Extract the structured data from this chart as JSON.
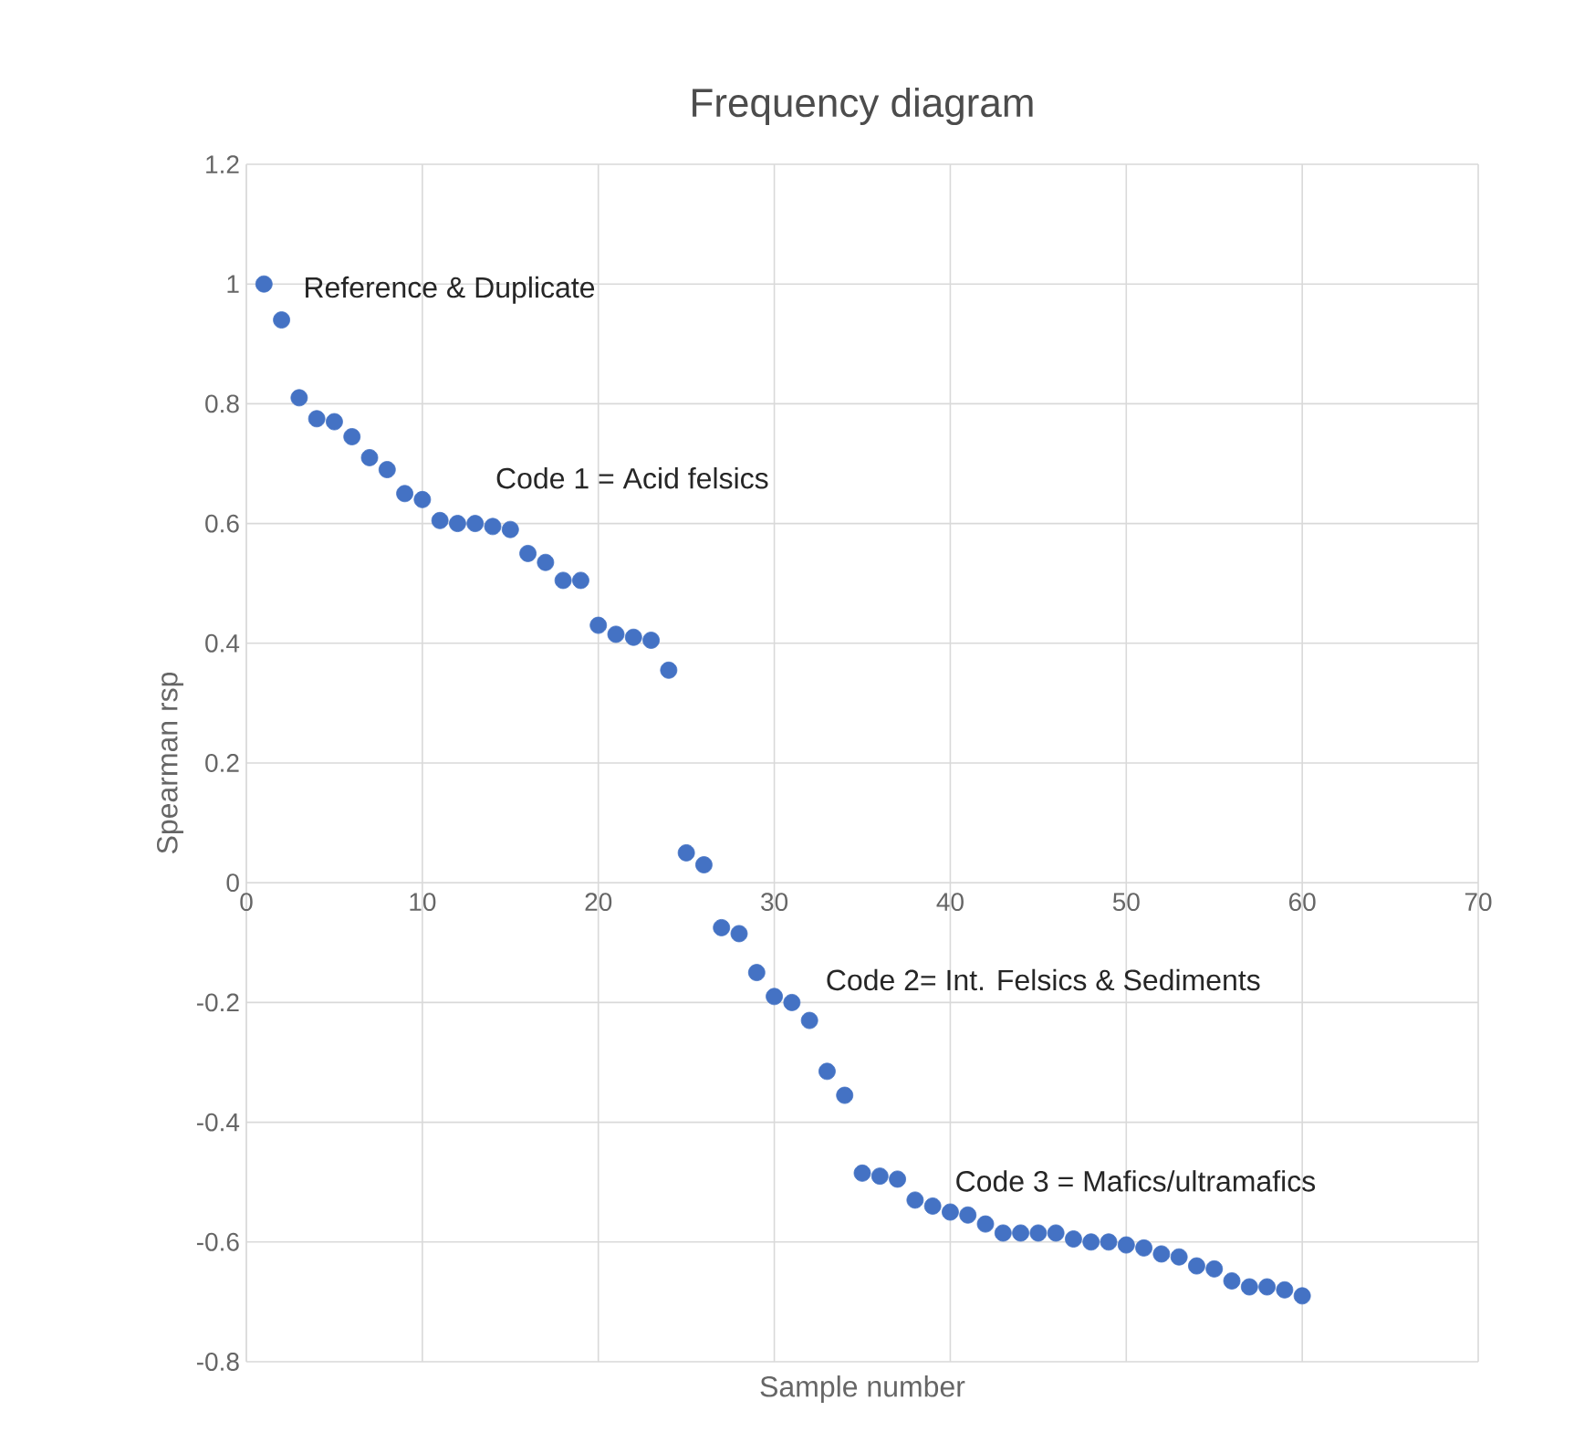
{
  "chart_data": {
    "type": "scatter",
    "title": "Frequency diagram",
    "xlabel": "Sample number",
    "ylabel": "Spearman rsp",
    "x": [
      1,
      2,
      3,
      4,
      5,
      6,
      7,
      8,
      9,
      10,
      11,
      12,
      13,
      14,
      15,
      16,
      17,
      18,
      19,
      20,
      21,
      22,
      23,
      24,
      25,
      26,
      27,
      28,
      29,
      30,
      31,
      32,
      33,
      34,
      35,
      36,
      37,
      38,
      39,
      40,
      41,
      42,
      43,
      44,
      45,
      46,
      47,
      48,
      49,
      50,
      51,
      52,
      53,
      54,
      55,
      56,
      57,
      58,
      59,
      60
    ],
    "values": [
      1.0,
      0.94,
      0.81,
      0.775,
      0.77,
      0.745,
      0.71,
      0.69,
      0.65,
      0.64,
      0.605,
      0.6,
      0.6,
      0.595,
      0.59,
      0.55,
      0.535,
      0.505,
      0.505,
      0.43,
      0.415,
      0.41,
      0.405,
      0.355,
      0.05,
      0.03,
      -0.075,
      -0.085,
      -0.15,
      -0.19,
      -0.2,
      -0.23,
      -0.315,
      -0.355,
      -0.485,
      -0.49,
      -0.495,
      -0.53,
      -0.54,
      -0.55,
      -0.555,
      -0.57,
      -0.585,
      -0.585,
      -0.585,
      -0.585,
      -0.595,
      -0.6,
      -0.6,
      -0.605,
      -0.61,
      -0.62,
      -0.625,
      -0.64,
      -0.645,
      -0.665,
      -0.675,
      -0.675,
      -0.68,
      -0.69
    ],
    "color": "#4472c4",
    "marker": "circle",
    "grid": true,
    "xlim": [
      0,
      70
    ],
    "xticks": [
      0,
      10,
      20,
      30,
      40,
      50,
      60,
      70
    ],
    "ylim": [
      -0.8,
      1.2
    ],
    "yticks": [
      -0.8,
      -0.6,
      -0.4,
      -0.2,
      0,
      0.2,
      0.4,
      0.6,
      0.8,
      1,
      1.2
    ],
    "annotations": [
      "Reference & Duplicate",
      "Code 1 = Acid felsics",
      "Code 2= Int. Felsics & Sediments",
      "Code 3 = Mafics/ultramafics"
    ]
  }
}
